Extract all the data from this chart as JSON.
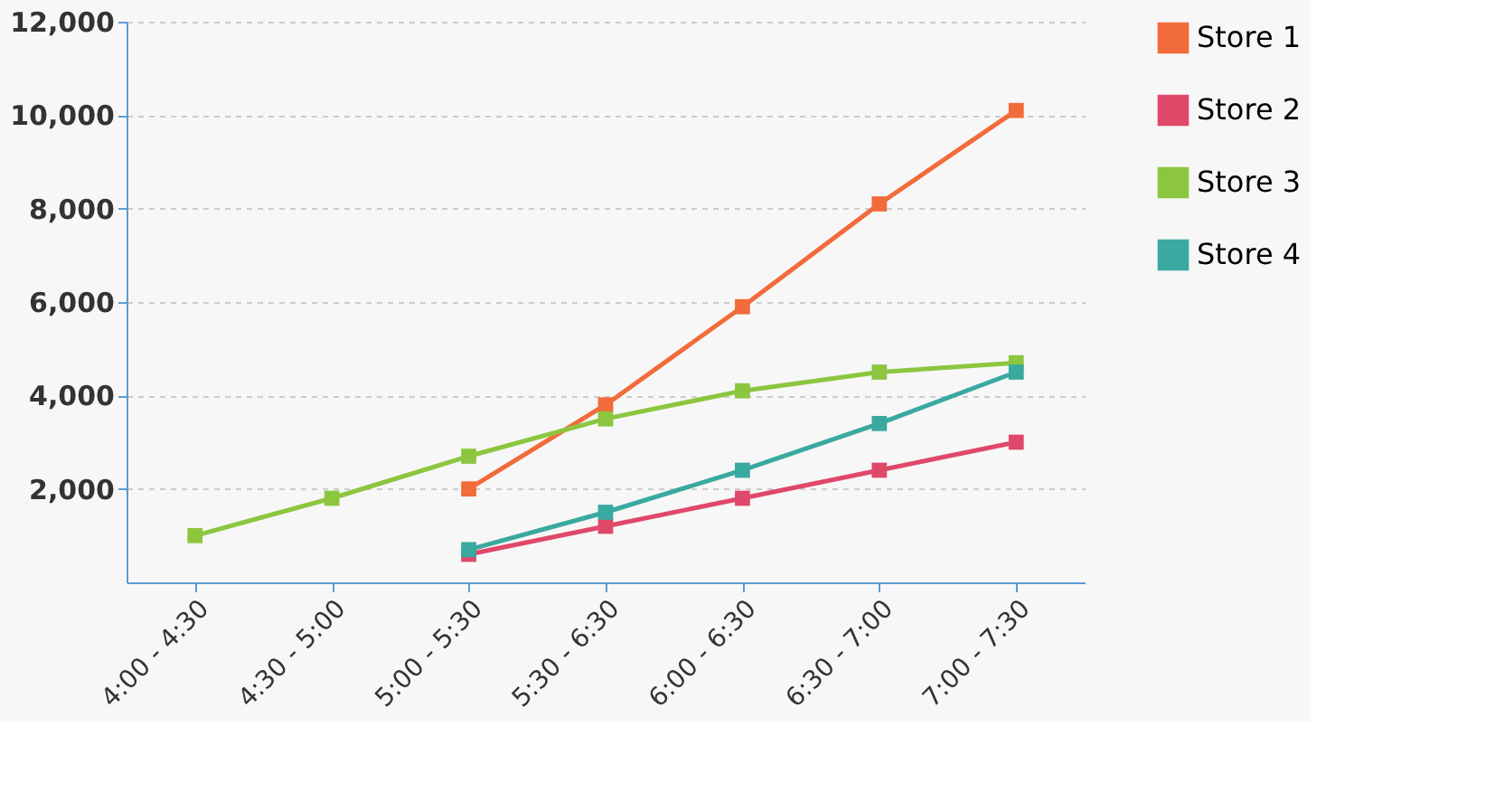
{
  "chart_data": {
    "type": "line",
    "categories": [
      "4:00 - 4:30",
      "4:30 - 5:00",
      "5:00 - 5:30",
      "5:30 - 6:30",
      "6:00 - 6:30",
      "6:30 - 7:00",
      "7:00 - 7:30"
    ],
    "series": [
      {
        "name": "Store 1",
        "color": "#f26b3a",
        "values": [
          null,
          null,
          2000,
          3800,
          5900,
          8100,
          10100
        ]
      },
      {
        "name": "Store 2",
        "color": "#e0486a",
        "values": [
          null,
          null,
          600,
          1200,
          1800,
          2400,
          3000
        ]
      },
      {
        "name": "Store 3",
        "color": "#8cc63f",
        "values": [
          1000,
          1800,
          2700,
          3500,
          4100,
          4500,
          4700
        ]
      },
      {
        "name": "Store 4",
        "color": "#3aa99f",
        "values": [
          null,
          null,
          700,
          1500,
          2400,
          3400,
          4500
        ]
      }
    ],
    "ylim": [
      0,
      12000
    ],
    "yticks": [
      {
        "value": 2000,
        "label": "2,000"
      },
      {
        "value": 4000,
        "label": "4,000"
      },
      {
        "value": 6000,
        "label": "6,000"
      },
      {
        "value": 8000,
        "label": "8,000"
      },
      {
        "value": 10000,
        "label": "10,000"
      },
      {
        "value": 12000,
        "label": "12,000"
      }
    ],
    "grid": "y",
    "legend": "right",
    "marker": "square",
    "line_style": "solid"
  }
}
